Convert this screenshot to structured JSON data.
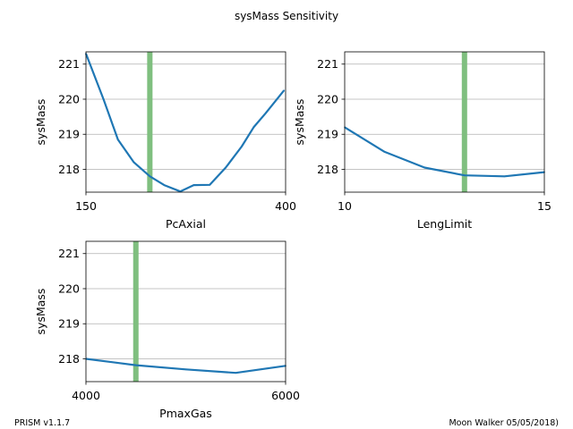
{
  "title": "sysMass Sensitivity",
  "footer": {
    "left": "PRISM v1.1.7",
    "right": "Moon Walker 05/05/2018)"
  },
  "colors": {
    "line": "#1f77b4",
    "marker": "#7fbf7f",
    "grid": "#b0b0b0",
    "axis": "#000000"
  },
  "chart_data": [
    {
      "type": "line",
      "xlabel": "PcAxial",
      "ylabel": "sysMass",
      "xlim": [
        150,
        400
      ],
      "ylim": [
        217.35,
        221.35
      ],
      "xticks": [
        "150",
        "400"
      ],
      "yticks": [
        "218",
        "219",
        "220",
        "221"
      ],
      "grid": "y",
      "marker_x": 230,
      "x": [
        150,
        172,
        190,
        210,
        230,
        248,
        268,
        285,
        305,
        325,
        345,
        360,
        375,
        398
      ],
      "y": [
        221.3,
        220.0,
        218.85,
        218.2,
        217.8,
        217.55,
        217.37,
        217.55,
        217.56,
        218.05,
        218.65,
        219.2,
        219.6,
        220.25
      ]
    },
    {
      "type": "line",
      "xlabel": "LengLimit",
      "ylabel": "sysMass",
      "xlim": [
        10,
        15
      ],
      "ylim": [
        217.35,
        221.35
      ],
      "xticks": [
        "10",
        "15"
      ],
      "yticks": [
        "218",
        "219",
        "220",
        "221"
      ],
      "grid": "y",
      "marker_x": 13.0,
      "x": [
        10,
        11,
        12,
        13,
        14,
        15
      ],
      "y": [
        219.2,
        218.5,
        218.05,
        217.83,
        217.8,
        217.92
      ]
    },
    {
      "type": "line",
      "xlabel": "PmaxGas",
      "ylabel": "sysMass",
      "xlim": [
        4000,
        6000
      ],
      "ylim": [
        217.35,
        221.35
      ],
      "xticks": [
        "4000",
        "6000"
      ],
      "yticks": [
        "218",
        "219",
        "220",
        "221"
      ],
      "grid": "y",
      "marker_x": 4500,
      "x": [
        4000,
        4500,
        5000,
        5500,
        6000
      ],
      "y": [
        218.0,
        217.82,
        217.7,
        217.6,
        217.8
      ]
    }
  ]
}
